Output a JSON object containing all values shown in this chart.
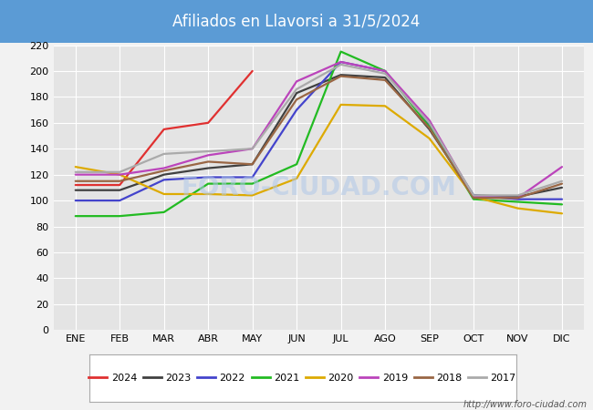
{
  "title": "Afiliados en Llavorsi a 31/5/2024",
  "title_bgcolor": "#5b9bd5",
  "title_fgcolor": "#ffffff",
  "months": [
    "ENE",
    "FEB",
    "MAR",
    "ABR",
    "MAY",
    "JUN",
    "JUL",
    "AGO",
    "SEP",
    "OCT",
    "NOV",
    "DIC"
  ],
  "ylim": [
    0,
    220
  ],
  "yticks": [
    0,
    20,
    40,
    60,
    80,
    100,
    120,
    140,
    160,
    180,
    200,
    220
  ],
  "series": {
    "2024": {
      "color": "#e03030",
      "data": [
        112,
        112,
        155,
        160,
        200,
        null,
        null,
        null,
        null,
        null,
        null,
        null
      ]
    },
    "2023": {
      "color": "#404040",
      "data": [
        108,
        108,
        120,
        125,
        128,
        183,
        197,
        195,
        155,
        104,
        103,
        110
      ]
    },
    "2022": {
      "color": "#4444cc",
      "data": [
        100,
        100,
        116,
        118,
        118,
        170,
        207,
        200,
        158,
        104,
        101,
        101
      ]
    },
    "2021": {
      "color": "#22bb22",
      "data": [
        88,
        88,
        91,
        113,
        113,
        128,
        215,
        200,
        157,
        101,
        99,
        97
      ]
    },
    "2020": {
      "color": "#ddaa00",
      "data": [
        126,
        120,
        105,
        105,
        104,
        117,
        174,
        173,
        148,
        103,
        94,
        90
      ]
    },
    "2019": {
      "color": "#bb44bb",
      "data": [
        120,
        120,
        125,
        135,
        140,
        192,
        207,
        200,
        162,
        103,
        102,
        126
      ]
    },
    "2018": {
      "color": "#996644",
      "data": [
        115,
        115,
        123,
        130,
        128,
        178,
        196,
        193,
        156,
        102,
        102,
        113
      ]
    },
    "2017": {
      "color": "#aaaaaa",
      "data": [
        122,
        122,
        136,
        138,
        140,
        186,
        205,
        198,
        160,
        104,
        104,
        115
      ]
    }
  },
  "legend_order": [
    "2024",
    "2023",
    "2022",
    "2021",
    "2020",
    "2019",
    "2018",
    "2017"
  ],
  "watermark": "http://www.foro-ciudad.com",
  "bg_color": "#f2f2f2",
  "plot_bg_color": "#e4e4e4",
  "grid_color": "#ffffff",
  "linewidth": 1.6
}
